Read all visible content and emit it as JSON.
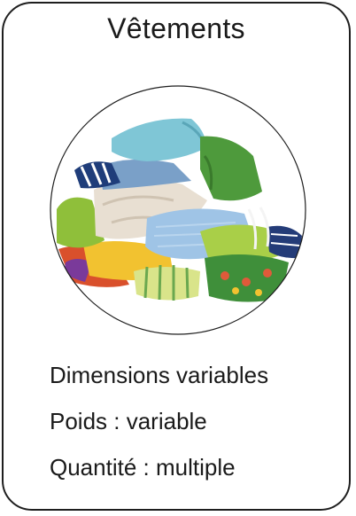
{
  "card": {
    "title": "Vêtements",
    "image_alt": "pile-of-clothes",
    "lines": [
      "Dimensions variables",
      "Poids : variable",
      "Quantité : multiple"
    ]
  }
}
